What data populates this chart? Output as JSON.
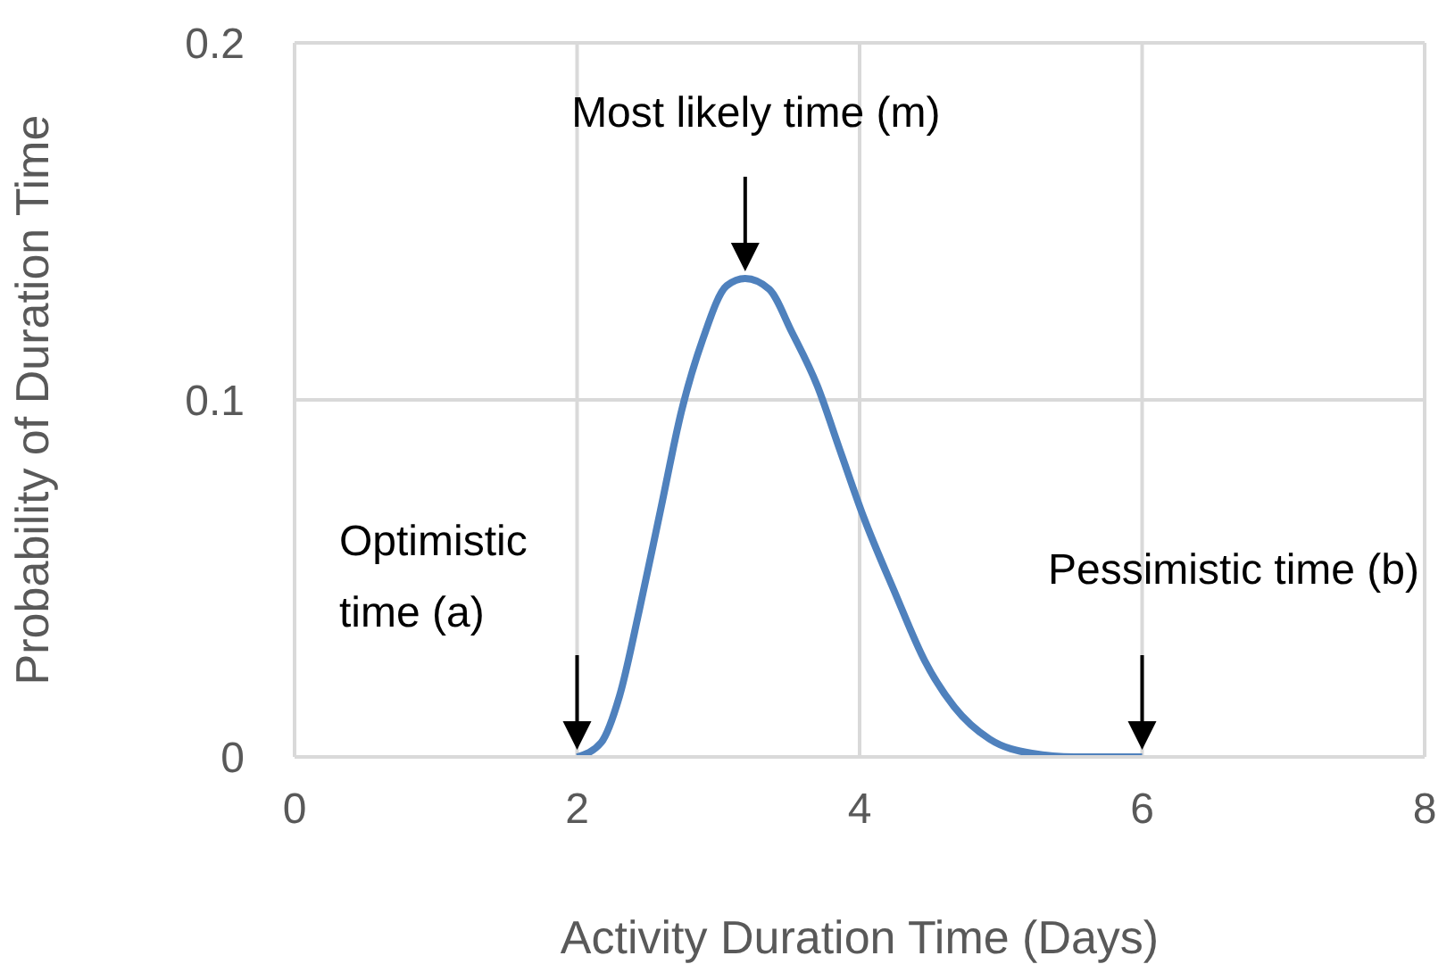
{
  "chart_data": {
    "type": "line",
    "xlabel": "Activity Duration Time (Days)",
    "ylabel": "Probability of Duration Time",
    "x": [
      2,
      2.17,
      2.3,
      2.44,
      2.59,
      2.74,
      2.89,
      3.06,
      3.19,
      3.36,
      3.52,
      3.7,
      3.86,
      4.03,
      4.25,
      4.46,
      4.67,
      4.92,
      5.22,
      5.52,
      6
    ],
    "series": [
      {
        "color": "#4f81bd",
        "values": [
          0,
          0.004,
          0.017,
          0.041,
          0.069,
          0.097,
          0.117,
          0.132,
          0.134,
          0.131,
          0.119,
          0.104,
          0.086,
          0.067,
          0.046,
          0.027,
          0.014,
          0.005,
          0.001,
          0,
          0
        ]
      }
    ],
    "xlim": [
      0,
      8
    ],
    "xticks": [
      0,
      2,
      4,
      6,
      8
    ],
    "ylim": [
      0,
      0.2
    ],
    "yticks": [
      0,
      0.1,
      0.2
    ],
    "grid": true,
    "marker": "none",
    "line_style": "solid",
    "annotations": [
      "Optimistic time (a)",
      "Most likely time (m)",
      "Pessimistic time (b)"
    ]
  }
}
